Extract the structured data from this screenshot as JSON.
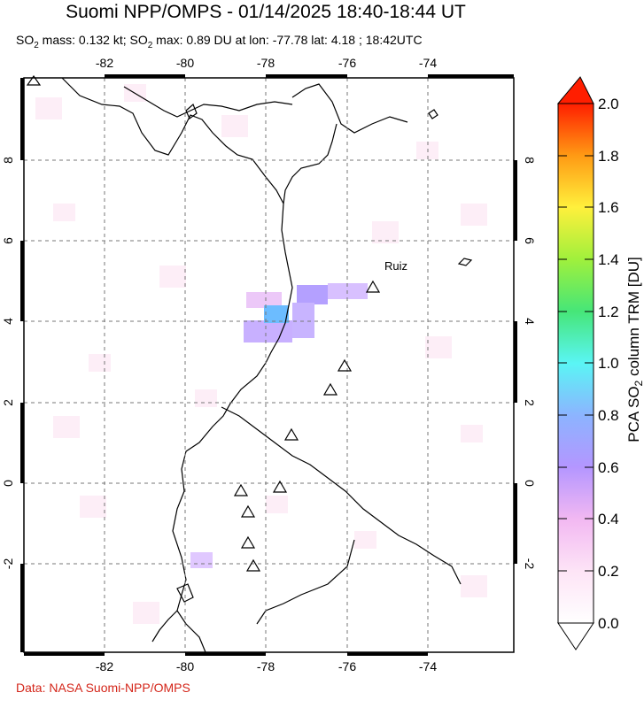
{
  "header": {
    "title": "Suomi NPP/OMPS - 01/14/2025 18:40-18:44 UT",
    "subtitle_pre": "SO",
    "subtitle_mid": " mass: 0.132 kt; SO",
    "subtitle_post": " max: 0.89 DU at lon: -77.78 lat: 4.18 ; 18:42UTC",
    "sub2": "2"
  },
  "map": {
    "lon_ticks": [
      "-82",
      "-80",
      "-78",
      "-76",
      "-74"
    ],
    "lat_ticks": [
      "8",
      "6",
      "4",
      "2",
      "0",
      "-2"
    ],
    "volcano_label": "Ruiz"
  },
  "colorbar": {
    "labels": [
      "2.0",
      "1.8",
      "1.6",
      "1.4",
      "1.2",
      "1.0",
      "0.8",
      "0.6",
      "0.4",
      "0.2",
      "0.0"
    ],
    "title_a": "PCA SO",
    "title_sub": "2",
    "title_b": " column TRM [DU]",
    "colors": [
      "#ffffff",
      "#ffc8f0",
      "#b496ff",
      "#78c8ff",
      "#5af5f5",
      "#50f050",
      "#e6f53c",
      "#ffd21e",
      "#ff7814",
      "#ff1e00"
    ]
  },
  "footer": {
    "credit": "Data: NASA Suomi-NPP/OMPS"
  }
}
